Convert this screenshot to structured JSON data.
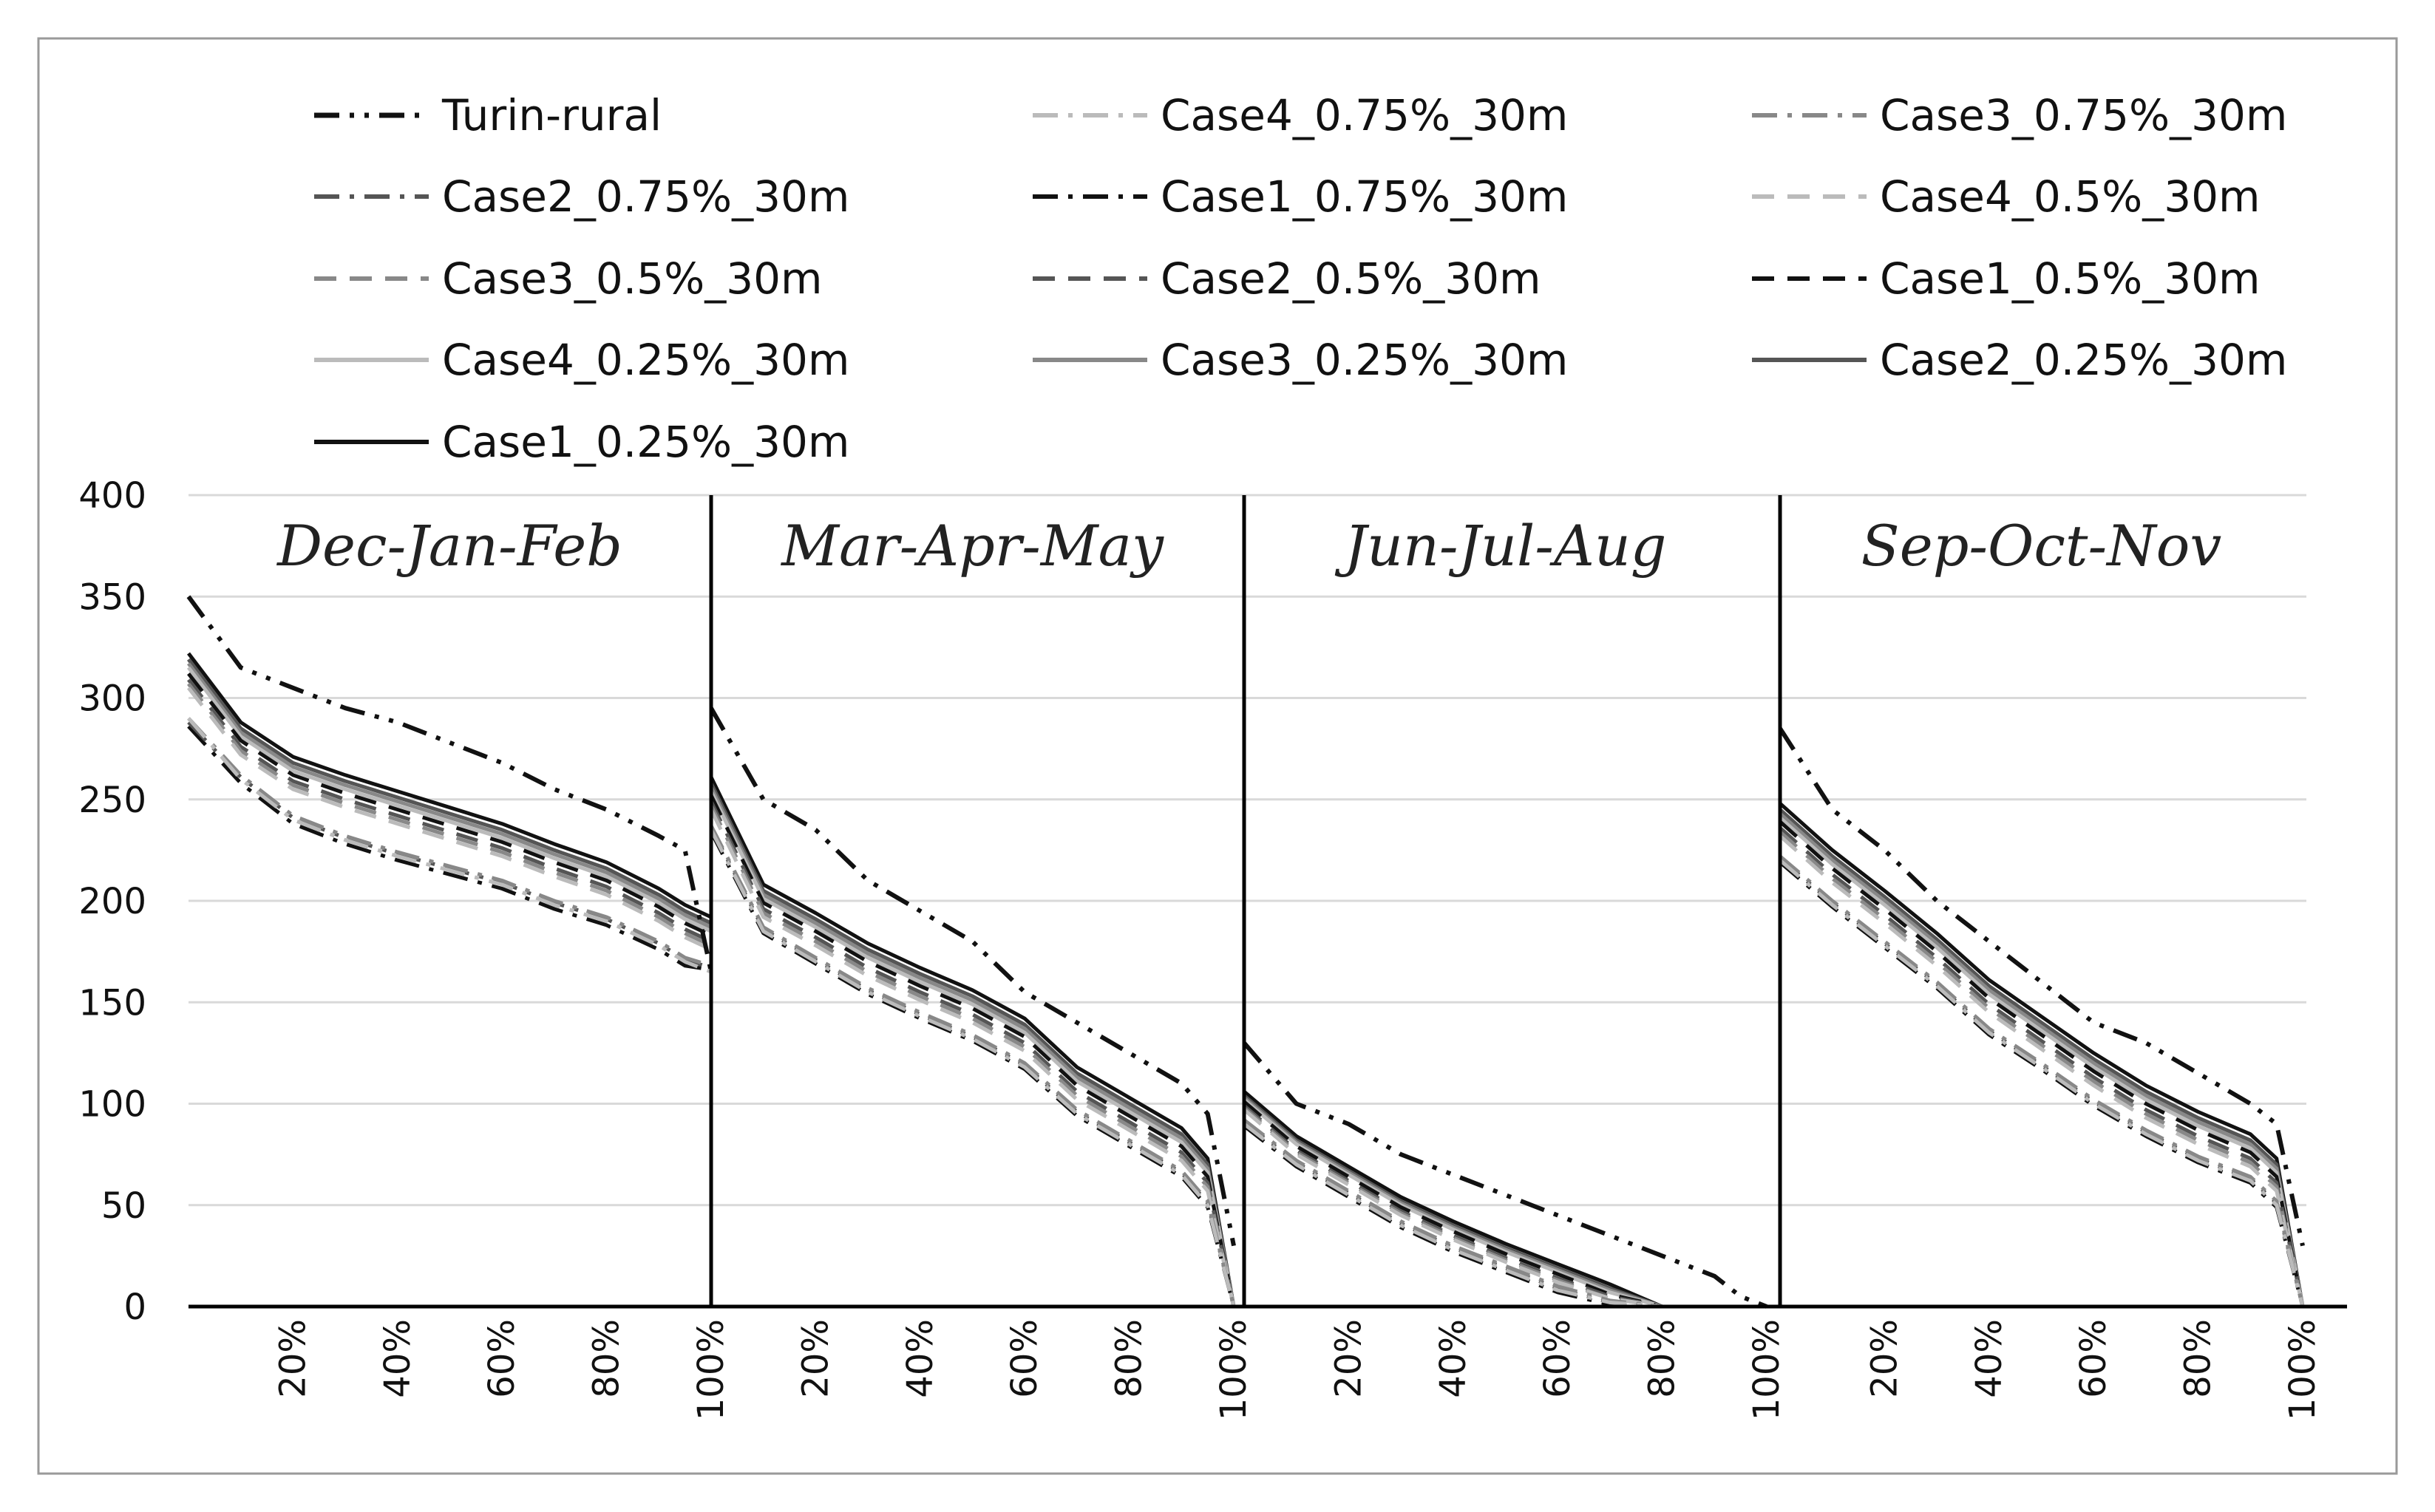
{
  "chart_data": {
    "type": "line",
    "title": "",
    "xlabel": "",
    "ylabel": "",
    "ylim": [
      0,
      400
    ],
    "yticks": [
      0,
      50,
      100,
      150,
      200,
      250,
      300,
      350,
      400
    ],
    "grid": true,
    "legend_position": "top",
    "periods": [
      "Dec-Jan-Feb",
      "Mar-Apr-May",
      "Jun-Jul-Aug",
      "Sep-Oct-Nov"
    ],
    "x_percent": [
      0,
      10,
      20,
      30,
      40,
      50,
      60,
      70,
      80,
      90,
      95,
      100
    ],
    "xtick_labels": [
      "20%",
      "40%",
      "60%",
      "80%",
      "100%"
    ],
    "series": [
      {
        "name": "Turin-rural",
        "color": "#111111",
        "dash": "dashdotdot",
        "width": 6,
        "values": [
          [
            350,
            315,
            305,
            295,
            288,
            278,
            268,
            255,
            245,
            232,
            225,
            165
          ],
          [
            295,
            250,
            235,
            210,
            195,
            180,
            155,
            140,
            125,
            110,
            95,
            30
          ],
          [
            130,
            100,
            90,
            75,
            65,
            55,
            45,
            35,
            25,
            15,
            5,
            0
          ],
          [
            285,
            245,
            225,
            200,
            180,
            160,
            140,
            130,
            115,
            100,
            90,
            30
          ]
        ]
      },
      {
        "name": "Case4_0.75%_30m",
        "color": "#bbbbbb",
        "dash": "dashdot",
        "width": 5,
        "values": [
          [
            290,
            260,
            240,
            230,
            222,
            215,
            208,
            198,
            190,
            178,
            170,
            165
          ],
          [
            235,
            185,
            170,
            155,
            143,
            132,
            118,
            95,
            80,
            65,
            50,
            0
          ],
          [
            90,
            70,
            55,
            40,
            28,
            18,
            8,
            2,
            0,
            0,
            0,
            0
          ],
          [
            220,
            198,
            178,
            158,
            135,
            118,
            100,
            85,
            72,
            62,
            50,
            0
          ]
        ]
      },
      {
        "name": "Case3_0.75%_30m",
        "color": "#888888",
        "dash": "dashdot",
        "width": 5,
        "values": [
          [
            290,
            262,
            242,
            232,
            224,
            217,
            210,
            200,
            192,
            180,
            172,
            168
          ],
          [
            237,
            187,
            172,
            157,
            145,
            134,
            120,
            97,
            82,
            67,
            52,
            0
          ],
          [
            92,
            72,
            57,
            42,
            30,
            20,
            10,
            3,
            0,
            0,
            0,
            0
          ],
          [
            222,
            200,
            180,
            160,
            137,
            120,
            102,
            87,
            74,
            64,
            52,
            0
          ]
        ]
      },
      {
        "name": "Case2_0.75%_30m",
        "color": "#555555",
        "dash": "dashdot",
        "width": 5,
        "values": [
          [
            288,
            261,
            241,
            231,
            223,
            216,
            209,
            199,
            191,
            179,
            171,
            167
          ],
          [
            236,
            186,
            171,
            156,
            144,
            133,
            119,
            96,
            81,
            66,
            51,
            0
          ],
          [
            91,
            71,
            56,
            41,
            29,
            19,
            9,
            2,
            0,
            0,
            0,
            0
          ],
          [
            221,
            199,
            179,
            159,
            136,
            119,
            101,
            86,
            73,
            63,
            51,
            0
          ]
        ]
      },
      {
        "name": "Case1_0.75%_30m",
        "color": "#111111",
        "dash": "dashdot",
        "width": 5,
        "values": [
          [
            286,
            258,
            238,
            228,
            220,
            213,
            206,
            196,
            188,
            176,
            168,
            166
          ],
          [
            234,
            184,
            169,
            154,
            142,
            131,
            117,
            94,
            79,
            64,
            49,
            0
          ],
          [
            89,
            69,
            54,
            39,
            27,
            17,
            7,
            1,
            0,
            0,
            0,
            0
          ],
          [
            219,
            197,
            177,
            157,
            134,
            117,
            99,
            84,
            71,
            61,
            49,
            0
          ]
        ]
      },
      {
        "name": "Case4_0.5%_30m",
        "color": "#bbbbbb",
        "dash": "dash",
        "width": 5,
        "values": [
          [
            305,
            272,
            255,
            246,
            238,
            230,
            222,
            212,
            203,
            190,
            182,
            176
          ],
          [
            245,
            192,
            178,
            163,
            151,
            140,
            126,
            102,
            87,
            72,
            57,
            0
          ],
          [
            97,
            75,
            60,
            45,
            33,
            22,
            12,
            4,
            0,
            0,
            0,
            0
          ],
          [
            232,
            209,
            189,
            168,
            145,
            127,
            109,
            93,
            80,
            69,
            57,
            0
          ]
        ]
      },
      {
        "name": "Case3_0.5%_30m",
        "color": "#888888",
        "dash": "dash",
        "width": 5,
        "values": [
          [
            307,
            274,
            257,
            248,
            240,
            232,
            224,
            214,
            205,
            192,
            184,
            178
          ],
          [
            247,
            194,
            180,
            165,
            153,
            142,
            128,
            104,
            89,
            74,
            59,
            0
          ],
          [
            98,
            76,
            61,
            46,
            34,
            23,
            13,
            4,
            0,
            0,
            0,
            0
          ],
          [
            234,
            211,
            191,
            170,
            147,
            129,
            111,
            95,
            82,
            71,
            59,
            0
          ]
        ]
      },
      {
        "name": "Case2_0.5%_30m",
        "color": "#555555",
        "dash": "dash",
        "width": 5,
        "values": [
          [
            309,
            276,
            259,
            250,
            242,
            234,
            226,
            216,
            207,
            194,
            186,
            180
          ],
          [
            249,
            196,
            182,
            167,
            155,
            144,
            130,
            106,
            91,
            76,
            61,
            0
          ],
          [
            99,
            77,
            62,
            47,
            35,
            24,
            14,
            5,
            0,
            0,
            0,
            0
          ],
          [
            236,
            213,
            193,
            172,
            149,
            131,
            113,
            97,
            84,
            73,
            61,
            0
          ]
        ]
      },
      {
        "name": "Case1_0.5%_30m",
        "color": "#111111",
        "dash": "dash",
        "width": 5,
        "values": [
          [
            312,
            279,
            262,
            253,
            245,
            237,
            229,
            219,
            210,
            197,
            189,
            183
          ],
          [
            252,
            199,
            185,
            170,
            158,
            147,
            133,
            109,
            94,
            79,
            64,
            0
          ],
          [
            101,
            79,
            64,
            49,
            37,
            26,
            16,
            6,
            0,
            0,
            0,
            0
          ],
          [
            239,
            216,
            196,
            175,
            152,
            134,
            116,
            100,
            87,
            76,
            64,
            0
          ]
        ]
      },
      {
        "name": "Case4_0.25%_30m",
        "color": "#bbbbbb",
        "dash": "solid",
        "width": 5,
        "values": [
          [
            315,
            281,
            264,
            255,
            247,
            239,
            231,
            221,
            212,
            199,
            191,
            185
          ],
          [
            254,
            201,
            187,
            172,
            160,
            149,
            135,
            111,
            96,
            81,
            66,
            0
          ],
          [
            102,
            80,
            65,
            50,
            38,
            27,
            17,
            7,
            0,
            0,
            0,
            0
          ],
          [
            241,
            218,
            198,
            177,
            154,
            136,
            118,
            102,
            89,
            78,
            66,
            0
          ]
        ]
      },
      {
        "name": "Case3_0.25%_30m",
        "color": "#888888",
        "dash": "solid",
        "width": 5,
        "values": [
          [
            317,
            283,
            266,
            257,
            249,
            241,
            233,
            223,
            214,
            201,
            193,
            187
          ],
          [
            256,
            203,
            189,
            174,
            162,
            151,
            137,
            113,
            98,
            83,
            68,
            0
          ],
          [
            103,
            81,
            66,
            51,
            39,
            28,
            18,
            8,
            0,
            0,
            0,
            0
          ],
          [
            243,
            220,
            200,
            179,
            156,
            138,
            120,
            104,
            91,
            80,
            68,
            0
          ]
        ]
      },
      {
        "name": "Case2_0.25%_30m",
        "color": "#555555",
        "dash": "solid",
        "width": 5,
        "values": [
          [
            319,
            285,
            268,
            259,
            251,
            243,
            235,
            225,
            216,
            203,
            195,
            189
          ],
          [
            258,
            205,
            191,
            176,
            164,
            153,
            139,
            115,
            100,
            85,
            70,
            0
          ],
          [
            104,
            82,
            67,
            52,
            40,
            29,
            19,
            9,
            0,
            0,
            0,
            0
          ],
          [
            245,
            222,
            202,
            181,
            158,
            140,
            122,
            106,
            93,
            82,
            70,
            0
          ]
        ]
      },
      {
        "name": "Case1_0.25%_30m",
        "color": "#111111",
        "dash": "solid",
        "width": 5,
        "values": [
          [
            322,
            288,
            271,
            262,
            254,
            246,
            238,
            228,
            219,
            206,
            198,
            192
          ],
          [
            261,
            208,
            194,
            179,
            167,
            156,
            142,
            118,
            103,
            88,
            73,
            0
          ],
          [
            106,
            84,
            69,
            54,
            42,
            31,
            21,
            11,
            0,
            0,
            0,
            0
          ],
          [
            248,
            225,
            205,
            184,
            161,
            143,
            125,
            109,
            96,
            85,
            73,
            0
          ]
        ]
      }
    ]
  }
}
